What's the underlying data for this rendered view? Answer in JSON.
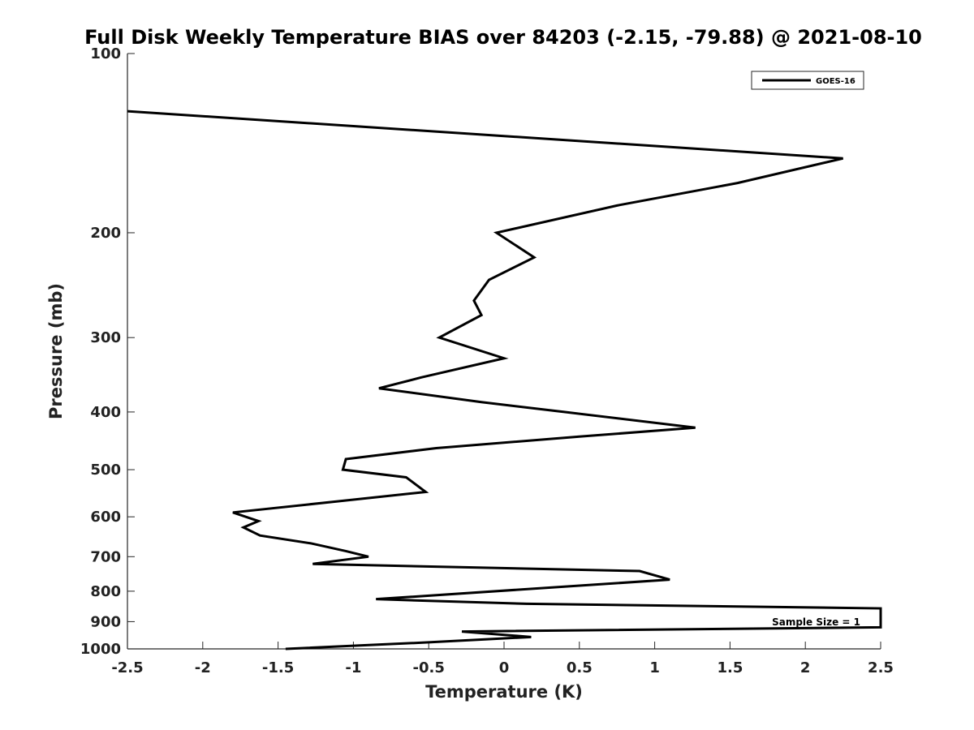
{
  "chart_data": {
    "type": "line",
    "title": "Full Disk Weekly Temperature BIAS over 84203 (-2.15, -79.88) @ 2021-08-10",
    "xlabel": "Temperature (K)",
    "ylabel": "Pressure (mb)",
    "xlim": [
      -2.5,
      2.5
    ],
    "ylim": [
      100,
      1000
    ],
    "y_scale": "log",
    "y_direction": "reversed",
    "x_ticks": [
      -2.5,
      -2,
      -1.5,
      -1,
      -0.5,
      0,
      0.5,
      1,
      1.5,
      2,
      2.5
    ],
    "x_tick_labels": [
      "-2.5",
      "-2",
      "-1.5",
      "-1",
      "-0.5",
      "0",
      "0.5",
      "1",
      "1.5",
      "2",
      "2.5"
    ],
    "y_ticks": [
      100,
      200,
      300,
      400,
      500,
      600,
      700,
      800,
      900,
      1000
    ],
    "y_tick_labels": [
      "100",
      "200",
      "300",
      "400",
      "500",
      "600",
      "700",
      "800",
      "900",
      "1000"
    ],
    "grid": false,
    "legend": {
      "placement": "top-right"
    },
    "annotations": [
      {
        "text": "Sample Size = 1",
        "placement": "bottom-right"
      }
    ],
    "series": [
      {
        "name": "GOES-16",
        "color": "#000000",
        "points": [
          {
            "x": -2.5,
            "y": 125
          },
          {
            "x": 2.25,
            "y": 150
          },
          {
            "x": 1.55,
            "y": 165
          },
          {
            "x": 0.75,
            "y": 180
          },
          {
            "x": -0.05,
            "y": 200
          },
          {
            "x": 0.2,
            "y": 220
          },
          {
            "x": -0.1,
            "y": 240
          },
          {
            "x": -0.2,
            "y": 260
          },
          {
            "x": -0.15,
            "y": 275
          },
          {
            "x": -0.43,
            "y": 300
          },
          {
            "x": 0.0,
            "y": 325
          },
          {
            "x": -0.55,
            "y": 350
          },
          {
            "x": -0.83,
            "y": 365
          },
          {
            "x": -0.15,
            "y": 385
          },
          {
            "x": 0.4,
            "y": 400
          },
          {
            "x": 1.27,
            "y": 425
          },
          {
            "x": 0.5,
            "y": 440
          },
          {
            "x": -0.45,
            "y": 460
          },
          {
            "x": -1.05,
            "y": 480
          },
          {
            "x": -1.07,
            "y": 500
          },
          {
            "x": -0.65,
            "y": 515
          },
          {
            "x": -0.52,
            "y": 545
          },
          {
            "x": -1.1,
            "y": 565
          },
          {
            "x": -1.8,
            "y": 590
          },
          {
            "x": -1.63,
            "y": 610
          },
          {
            "x": -1.73,
            "y": 625
          },
          {
            "x": -1.62,
            "y": 645
          },
          {
            "x": -1.28,
            "y": 665
          },
          {
            "x": -1.05,
            "y": 685
          },
          {
            "x": -0.9,
            "y": 700
          },
          {
            "x": -1.27,
            "y": 720
          },
          {
            "x": 0.9,
            "y": 740
          },
          {
            "x": 1.1,
            "y": 765
          },
          {
            "x": -0.85,
            "y": 825
          },
          {
            "x": 0.15,
            "y": 840
          },
          {
            "x": 2.5,
            "y": 855
          },
          {
            "x": 2.5,
            "y": 920
          },
          {
            "x": -0.28,
            "y": 935
          },
          {
            "x": 0.18,
            "y": 955
          },
          {
            "x": -0.5,
            "y": 975
          },
          {
            "x": -1.45,
            "y": 1000
          }
        ]
      }
    ]
  }
}
